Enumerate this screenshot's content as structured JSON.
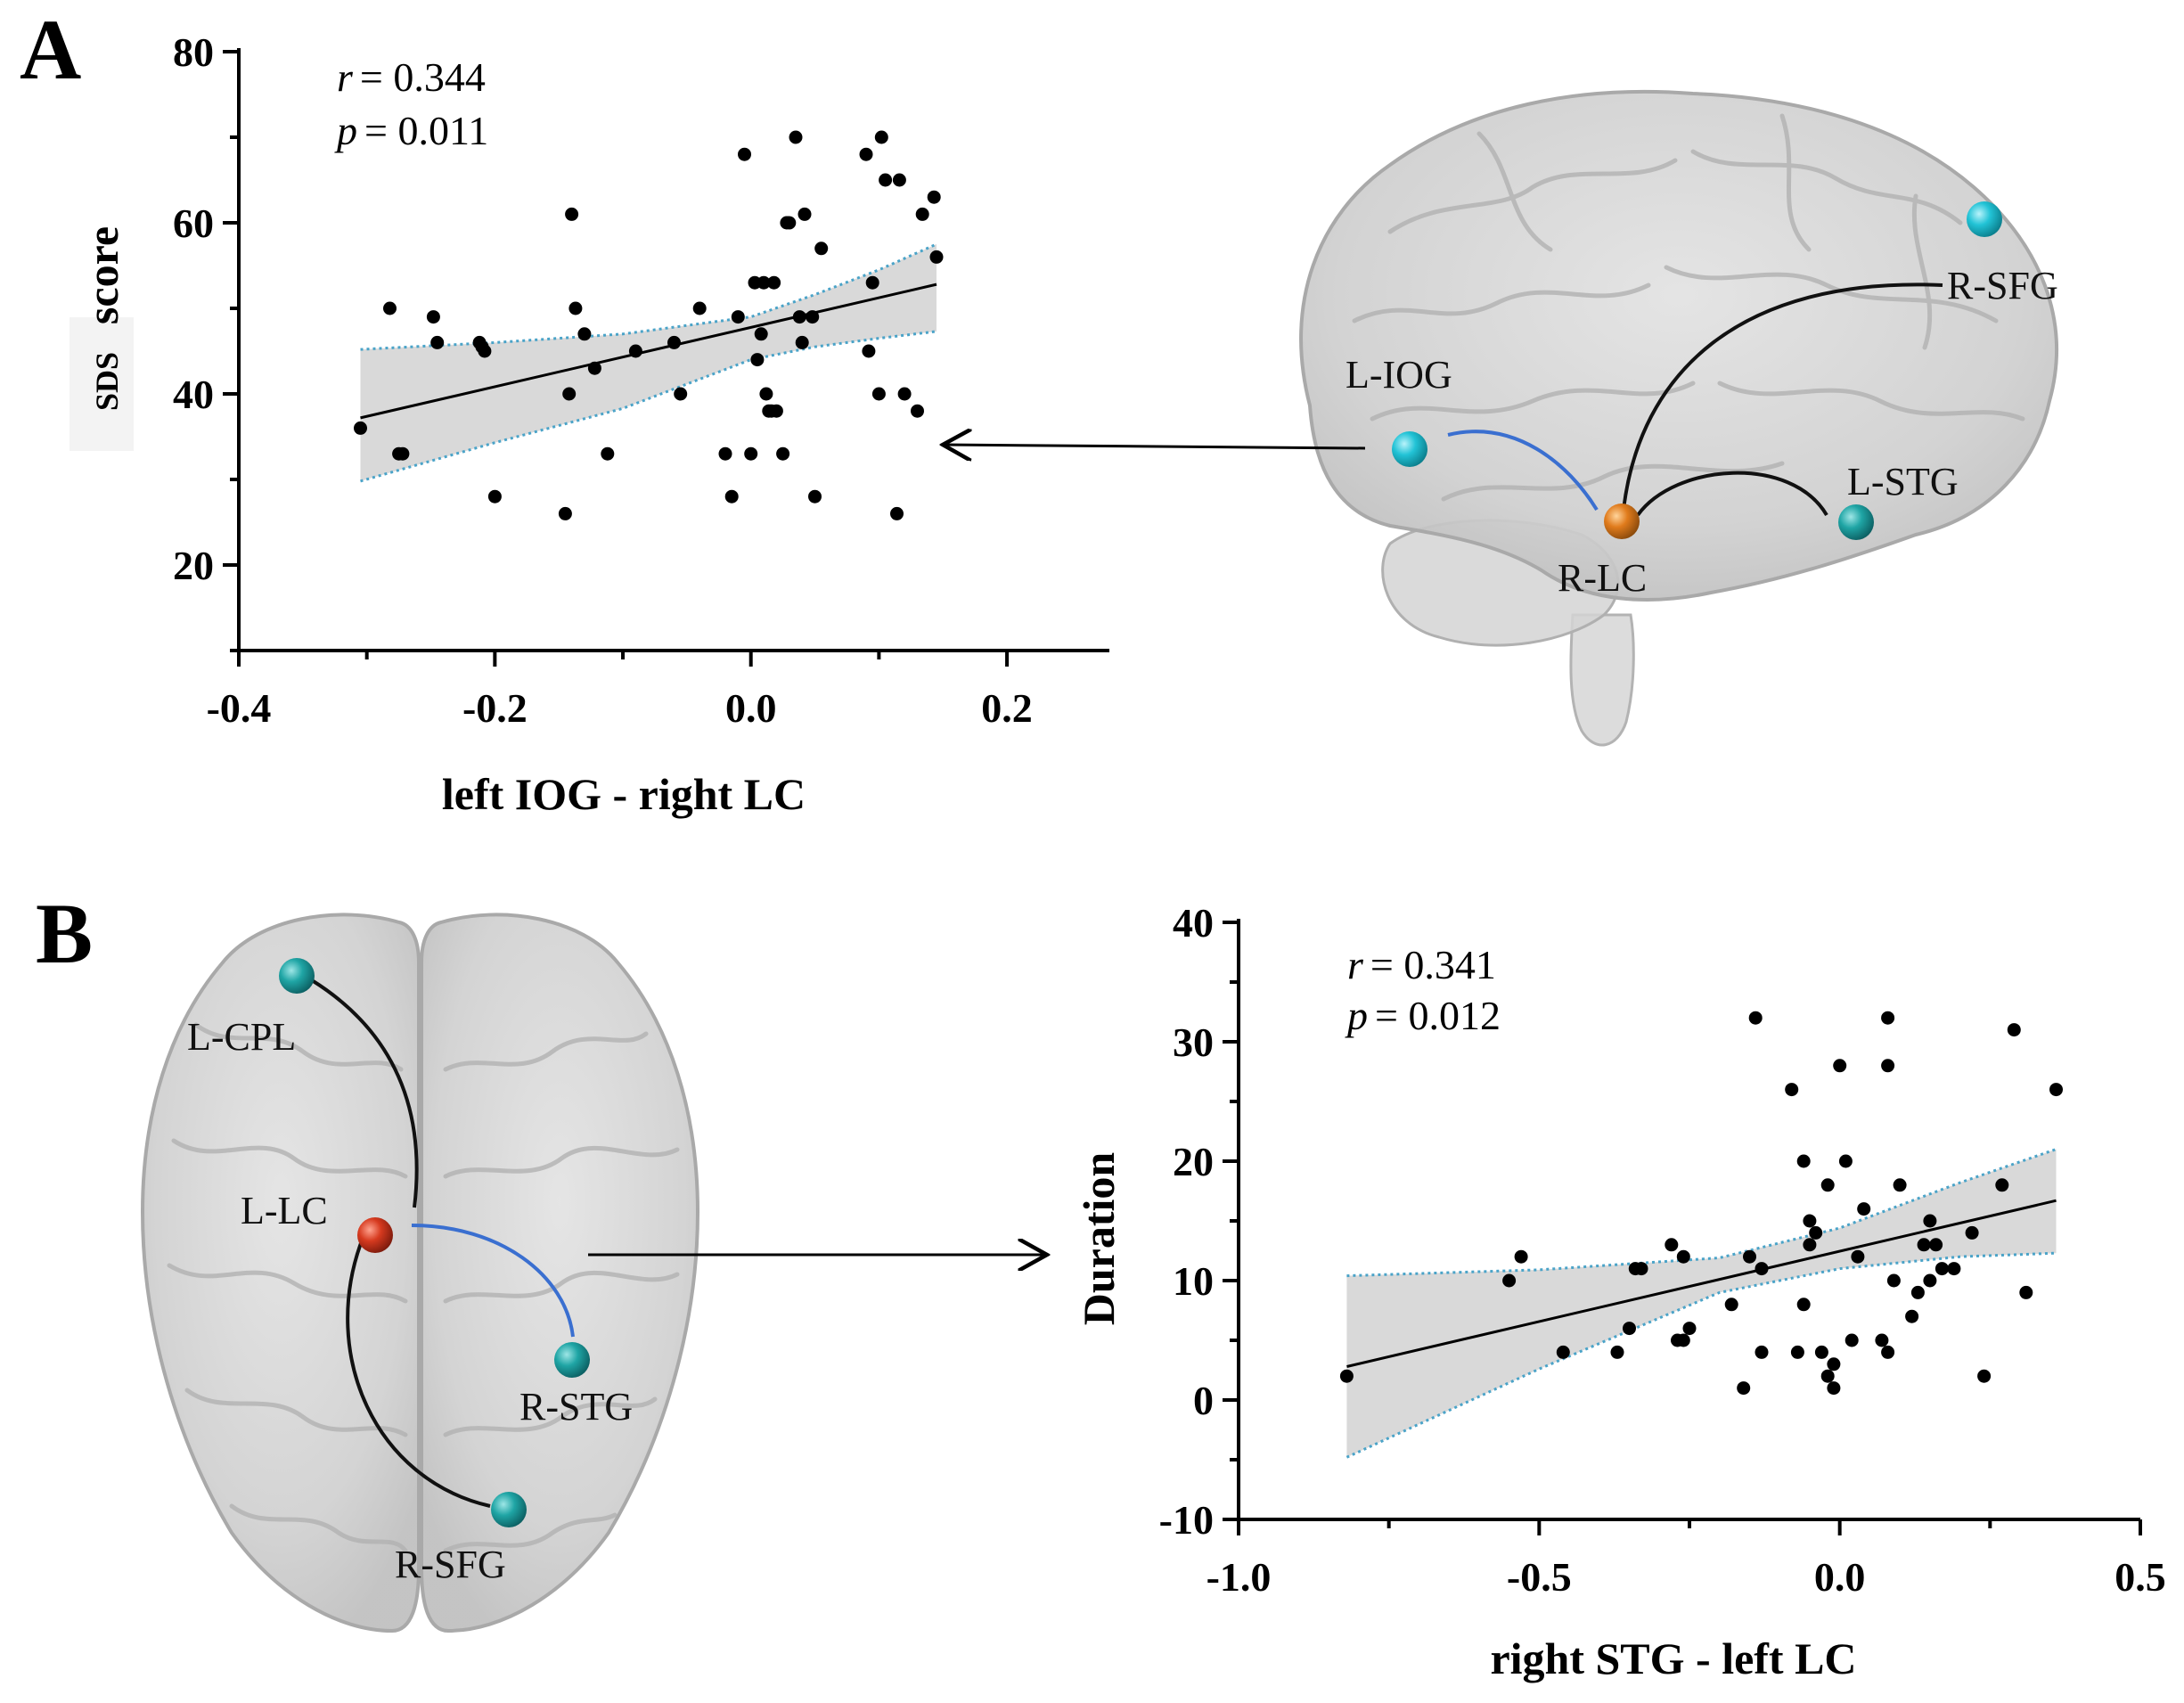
{
  "panels": {
    "a": {
      "letter": "A",
      "stats": {
        "r_symbol": "r",
        "r_value": "= 0.344",
        "p_symbol": "p",
        "p_value": "= 0.011"
      },
      "regions": {
        "l_iog": "L-IOG",
        "r_lc": "R-LC",
        "l_stg": "L-STG",
        "r_sfg": "R-SFG"
      }
    },
    "b": {
      "letter": "B",
      "stats": {
        "r_symbol": "r",
        "r_value": "= 0.341",
        "p_symbol": "p",
        "p_value": "= 0.012"
      },
      "regions": {
        "l_cpl": "L-CPL",
        "l_lc": "L-LC",
        "r_stg": "R-STG",
        "r_sfg": "R-SFG"
      }
    }
  },
  "colors": {
    "point": "#000000",
    "fit_line": "#000000",
    "ci_fill": "#d9d9d9",
    "ci_border": "#4aa3c8",
    "node_cyan": "#22c3d6",
    "node_teal": "#1fa5a5",
    "node_orange": "#e07b1c",
    "node_red": "#d63a1f",
    "link_blue": "#3a6fd0",
    "link_black": "#111111"
  },
  "chart_data": [
    {
      "type": "scatter",
      "xlabel": "left IOG  - right LC",
      "ylabel_parts": [
        "SDS",
        "score"
      ],
      "xlim": [
        -0.4,
        0.28
      ],
      "ylim": [
        10,
        80
      ],
      "xticks": [
        -0.4,
        -0.2,
        0.0,
        0.2
      ],
      "xtick_labels": [
        "-0.4",
        "-0.2",
        "0.0",
        "0.2"
      ],
      "yticks": [
        20,
        40,
        60,
        80
      ],
      "ytick_labels": [
        "20",
        "40",
        "60",
        "80"
      ],
      "fit": {
        "x": [
          -0.305,
          0.145
        ],
        "y": [
          37.2,
          52.8
        ]
      },
      "ci_band": {
        "x": [
          -0.305,
          -0.2,
          -0.1,
          0.0,
          0.05,
          0.1,
          0.145
        ],
        "upper": [
          45.2,
          46.0,
          47.0,
          49.0,
          51.6,
          54.5,
          57.5
        ],
        "lower": [
          29.8,
          34.3,
          38.3,
          44.0,
          45.5,
          46.5,
          47.3
        ]
      },
      "points": [
        [
          -0.305,
          36
        ],
        [
          -0.282,
          50
        ],
        [
          -0.275,
          33
        ],
        [
          -0.272,
          33
        ],
        [
          -0.248,
          49
        ],
        [
          -0.245,
          46
        ],
        [
          -0.212,
          46
        ],
        [
          -0.21,
          45.5
        ],
        [
          -0.208,
          45
        ],
        [
          -0.2,
          28
        ],
        [
          -0.145,
          26
        ],
        [
          -0.142,
          40
        ],
        [
          -0.14,
          61
        ],
        [
          -0.137,
          50
        ],
        [
          -0.13,
          47
        ],
        [
          -0.122,
          43
        ],
        [
          -0.112,
          33
        ],
        [
          -0.09,
          45
        ],
        [
          -0.06,
          46
        ],
        [
          -0.055,
          40
        ],
        [
          -0.04,
          50
        ],
        [
          -0.02,
          33
        ],
        [
          -0.015,
          28
        ],
        [
          -0.01,
          49
        ],
        [
          -0.005,
          68
        ],
        [
          0.0,
          33
        ],
        [
          0.003,
          53
        ],
        [
          0.005,
          44
        ],
        [
          0.008,
          47
        ],
        [
          0.01,
          53
        ],
        [
          0.012,
          40
        ],
        [
          0.014,
          38
        ],
        [
          0.016,
          38
        ],
        [
          0.018,
          53
        ],
        [
          0.02,
          38
        ],
        [
          0.025,
          33
        ],
        [
          0.028,
          60
        ],
        [
          0.03,
          60
        ],
        [
          0.035,
          70
        ],
        [
          0.038,
          49
        ],
        [
          0.04,
          46
        ],
        [
          0.042,
          61
        ],
        [
          0.048,
          49
        ],
        [
          0.05,
          28
        ],
        [
          0.055,
          57
        ],
        [
          0.09,
          68
        ],
        [
          0.092,
          45
        ],
        [
          0.095,
          53
        ],
        [
          0.1,
          40
        ],
        [
          0.102,
          70
        ],
        [
          0.105,
          65
        ],
        [
          0.114,
          26
        ],
        [
          0.116,
          65
        ],
        [
          0.12,
          40
        ],
        [
          0.13,
          38
        ],
        [
          0.134,
          61
        ],
        [
          0.143,
          63
        ],
        [
          0.145,
          56
        ]
      ]
    },
    {
      "type": "scatter",
      "xlabel": "right STG  - left LC",
      "ylabel": "Duration",
      "xlim": [
        -1.0,
        0.5
      ],
      "ylim": [
        -10,
        40
      ],
      "xticks": [
        -1.0,
        -0.5,
        0.0,
        0.5
      ],
      "xtick_labels": [
        "-1.0",
        "-0.5",
        "0.0",
        "0.5"
      ],
      "yticks": [
        -10,
        0,
        10,
        20,
        30,
        40
      ],
      "ytick_labels": [
        "-10",
        "0",
        "10",
        "20",
        "30",
        "40"
      ],
      "fit": {
        "x": [
          -0.82,
          0.36
        ],
        "y": [
          2.8,
          16.7
        ]
      },
      "ci_band": {
        "x": [
          -0.82,
          -0.5,
          -0.2,
          0.0,
          0.2,
          0.36
        ],
        "upper": [
          10.4,
          10.9,
          11.9,
          14.4,
          18.2,
          21.0
        ],
        "lower": [
          -4.8,
          2.6,
          9.0,
          11.0,
          12.0,
          12.3
        ]
      },
      "points": [
        [
          -0.82,
          2
        ],
        [
          -0.55,
          10
        ],
        [
          -0.53,
          12
        ],
        [
          -0.46,
          4
        ],
        [
          -0.37,
          4
        ],
        [
          -0.35,
          6
        ],
        [
          -0.34,
          11
        ],
        [
          -0.33,
          11
        ],
        [
          -0.28,
          13
        ],
        [
          -0.27,
          5
        ],
        [
          -0.26,
          5
        ],
        [
          -0.26,
          12
        ],
        [
          -0.25,
          6
        ],
        [
          -0.18,
          8
        ],
        [
          -0.16,
          1
        ],
        [
          -0.15,
          12
        ],
        [
          -0.14,
          32
        ],
        [
          -0.13,
          11
        ],
        [
          -0.13,
          4
        ],
        [
          -0.08,
          26
        ],
        [
          -0.07,
          4
        ],
        [
          -0.06,
          8
        ],
        [
          -0.06,
          20
        ],
        [
          -0.05,
          15
        ],
        [
          -0.05,
          13
        ],
        [
          -0.04,
          14
        ],
        [
          -0.03,
          4
        ],
        [
          -0.02,
          18
        ],
        [
          -0.02,
          2
        ],
        [
          -0.01,
          3
        ],
        [
          -0.01,
          1
        ],
        [
          0.0,
          28
        ],
        [
          0.01,
          20
        ],
        [
          0.02,
          5
        ],
        [
          0.03,
          12
        ],
        [
          0.04,
          16
        ],
        [
          0.07,
          5
        ],
        [
          0.08,
          4
        ],
        [
          0.08,
          32
        ],
        [
          0.08,
          28
        ],
        [
          0.09,
          10
        ],
        [
          0.1,
          18
        ],
        [
          0.12,
          7
        ],
        [
          0.13,
          9
        ],
        [
          0.14,
          13
        ],
        [
          0.15,
          10
        ],
        [
          0.15,
          15
        ],
        [
          0.16,
          13
        ],
        [
          0.17,
          11
        ],
        [
          0.19,
          11
        ],
        [
          0.22,
          14
        ],
        [
          0.24,
          2
        ],
        [
          0.27,
          18
        ],
        [
          0.29,
          31
        ],
        [
          0.31,
          9
        ],
        [
          0.36,
          26
        ]
      ]
    }
  ]
}
